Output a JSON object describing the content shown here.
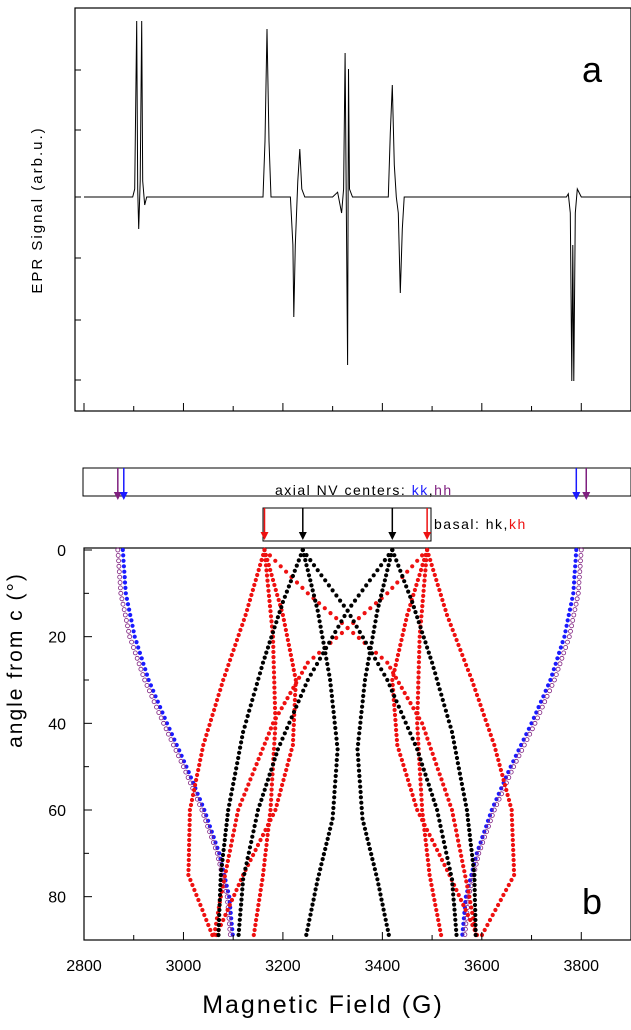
{
  "chart_data": [
    {
      "panel": "a",
      "type": "line",
      "ylabel": "EPR Signal (arb.u.)",
      "panel_label": "a",
      "xlim": [
        2800,
        3900
      ],
      "series": [
        {
          "points": [
            [
              2800,
              0.0
            ],
            [
              2898,
              0.0
            ],
            [
              2902,
              0.05
            ],
            [
              2906,
              1.1
            ],
            [
              2908,
              0.05
            ],
            [
              2910,
              -0.2
            ],
            [
              2913,
              0.1
            ],
            [
              2916,
              1.1
            ],
            [
              2918,
              0.1
            ],
            [
              2922,
              -0.05
            ],
            [
              2926,
              0.0
            ],
            [
              3160,
              0.0
            ],
            [
              3164,
              0.35
            ],
            [
              3168,
              1.05
            ],
            [
              3172,
              0.35
            ],
            [
              3176,
              0.0
            ],
            [
              3215,
              0.0
            ],
            [
              3220,
              -0.3
            ],
            [
              3222,
              -0.75
            ],
            [
              3225,
              -0.3
            ],
            [
              3230,
              0.1
            ],
            [
              3234,
              0.3
            ],
            [
              3238,
              0.05
            ],
            [
              3244,
              0.0
            ],
            [
              3300,
              0.0
            ],
            [
              3310,
              0.03
            ],
            [
              3318,
              -0.1
            ],
            [
              3322,
              0.05
            ],
            [
              3325,
              0.9
            ],
            [
              3327,
              0.1
            ],
            [
              3330,
              -1.05
            ],
            [
              3332,
              0.8
            ],
            [
              3334,
              0.05
            ],
            [
              3340,
              0.0
            ],
            [
              3412,
              0.0
            ],
            [
              3416,
              0.4
            ],
            [
              3420,
              0.7
            ],
            [
              3424,
              0.2
            ],
            [
              3428,
              0.0
            ],
            [
              3432,
              -0.1
            ],
            [
              3436,
              -0.6
            ],
            [
              3440,
              -0.2
            ],
            [
              3444,
              0.0
            ],
            [
              3770,
              0.0
            ],
            [
              3774,
              0.02
            ],
            [
              3778,
              -0.1
            ],
            [
              3781,
              -1.15
            ],
            [
              3783,
              -0.3
            ],
            [
              3785,
              -1.15
            ],
            [
              3788,
              -0.1
            ],
            [
              3792,
              0.05
            ],
            [
              3800,
              0.0
            ],
            [
              3900,
              0.0
            ]
          ]
        }
      ]
    },
    {
      "panel": "b",
      "type": "scatter",
      "xlabel": "Magnetic Field (G)",
      "ylabel": "angle from c (°)",
      "panel_label": "b",
      "xlim": [
        2800,
        3900
      ],
      "ylim": [
        0,
        90
      ],
      "y_inverted": true,
      "xticks": [
        "2800",
        "3000",
        "3200",
        "3400",
        "3600",
        "3800"
      ],
      "yticks": [
        "0",
        "20",
        "40",
        "60",
        "80"
      ],
      "series": [
        {
          "color": "#1a1aff",
          "points": [
            [
              2878,
              0
            ],
            [
              2884,
              10
            ],
            [
              2902,
              20
            ],
            [
              2930,
              30
            ],
            [
              2967,
              40
            ],
            [
              3006,
              50
            ],
            [
              3042,
              60
            ],
            [
              3072,
              70
            ],
            [
              3092,
              80
            ],
            [
              3100,
              90
            ],
            [
              3790,
              0
            ],
            [
              3784,
              10
            ],
            [
              3766,
              20
            ],
            [
              3738,
              30
            ],
            [
              3700,
              40
            ],
            [
              3658,
              50
            ],
            [
              3620,
              60
            ],
            [
              3590,
              70
            ],
            [
              3568,
              80
            ],
            [
              3560,
              90
            ]
          ]
        },
        {
          "color": "#7f1f7f",
          "points": [
            [
              2868,
              0
            ],
            [
              2874,
              10
            ],
            [
              2892,
              20
            ],
            [
              2922,
              30
            ],
            [
              2960,
              40
            ],
            [
              3000,
              50
            ],
            [
              3037,
              60
            ],
            [
              3068,
              70
            ],
            [
              3088,
              80
            ],
            [
              3095,
              90
            ],
            [
              3800,
              0
            ],
            [
              3794,
              10
            ],
            [
              3776,
              20
            ],
            [
              3746,
              30
            ],
            [
              3707,
              40
            ],
            [
              3664,
              50
            ],
            [
              3625,
              60
            ],
            [
              3594,
              70
            ],
            [
              3573,
              80
            ],
            [
              3565,
              90
            ]
          ]
        },
        {
          "color": "#ee1111",
          "points": [
            [
              3163,
              0
            ],
            [
              3125,
              15
            ],
            [
              3080,
              30
            ],
            [
              3040,
              45
            ],
            [
              3013,
              60
            ],
            [
              3010,
              75
            ],
            [
              3062,
              90
            ],
            [
              3163,
              0
            ],
            [
              3200,
              15
            ],
            [
              3226,
              30
            ],
            [
              3220,
              45
            ],
            [
              3185,
              60
            ],
            [
              3120,
              75
            ],
            [
              3062,
              90
            ],
            [
              3163,
              0
            ],
            [
              3180,
              20
            ],
            [
              3185,
              40
            ],
            [
              3175,
              60
            ],
            [
              3160,
              75
            ],
            [
              3140,
              90
            ],
            [
              3490,
              0
            ],
            [
              3530,
              15
            ],
            [
              3580,
              30
            ],
            [
              3625,
              45
            ],
            [
              3660,
              60
            ],
            [
              3665,
              75
            ],
            [
              3595,
              90
            ],
            [
              3490,
              0
            ],
            [
              3450,
              15
            ],
            [
              3420,
              30
            ],
            [
              3430,
              45
            ],
            [
              3470,
              60
            ],
            [
              3535,
              75
            ],
            [
              3595,
              90
            ],
            [
              3490,
              0
            ],
            [
              3475,
              20
            ],
            [
              3470,
              40
            ],
            [
              3480,
              60
            ],
            [
              3495,
              75
            ],
            [
              3520,
              90
            ],
            [
              3163,
              0
            ],
            [
              3250,
              10
            ],
            [
              3330,
              18
            ],
            [
              3410,
              26
            ],
            [
              3480,
              40
            ],
            [
              3540,
              60
            ],
            [
              3575,
              80
            ],
            [
              3590,
              90
            ],
            [
              3490,
              0
            ],
            [
              3410,
              10
            ],
            [
              3330,
              18
            ],
            [
              3250,
              26
            ],
            [
              3180,
              40
            ],
            [
              3110,
              60
            ],
            [
              3075,
              80
            ],
            [
              3060,
              90
            ]
          ]
        },
        {
          "color": "#000000",
          "points": [
            [
              3240,
              0
            ],
            [
              3200,
              12
            ],
            [
              3160,
              26
            ],
            [
              3120,
              42
            ],
            [
              3090,
              60
            ],
            [
              3075,
              75
            ],
            [
              3070,
              90
            ],
            [
              3240,
              0
            ],
            [
              3270,
              14
            ],
            [
              3295,
              30
            ],
            [
              3310,
              46
            ],
            [
              3300,
              62
            ],
            [
              3270,
              76
            ],
            [
              3245,
              90
            ],
            [
              3420,
              0
            ],
            [
              3460,
              12
            ],
            [
              3500,
              26
            ],
            [
              3540,
              42
            ],
            [
              3570,
              60
            ],
            [
              3585,
              75
            ],
            [
              3588,
              90
            ],
            [
              3420,
              0
            ],
            [
              3390,
              14
            ],
            [
              3365,
              30
            ],
            [
              3350,
              46
            ],
            [
              3360,
              62
            ],
            [
              3390,
              76
            ],
            [
              3415,
              90
            ],
            [
              3240,
              0
            ],
            [
              3330,
              14
            ],
            [
              3410,
              30
            ],
            [
              3470,
              46
            ],
            [
              3510,
              60
            ],
            [
              3540,
              76
            ],
            [
              3550,
              90
            ],
            [
              3420,
              0
            ],
            [
              3330,
              14
            ],
            [
              3250,
              30
            ],
            [
              3190,
              46
            ],
            [
              3150,
              60
            ],
            [
              3120,
              76
            ],
            [
              3110,
              90
            ]
          ]
        }
      ]
    }
  ],
  "legend": {
    "axial_text": "axial NV centers: ",
    "axial_kk": "kk",
    "axial_sep": ",",
    "axial_hh": "hh",
    "basal_text": "basal: hk,",
    "basal_kh": "kh",
    "axial_arrows": [
      {
        "field": 2868,
        "color": "#7f1f7f"
      },
      {
        "field": 2880,
        "color": "#1a1aff"
      },
      {
        "field": 3790,
        "color": "#1a1aff"
      },
      {
        "field": 3810,
        "color": "#7f1f7f"
      }
    ],
    "basal_arrows": [
      {
        "field": 3163,
        "color": "#ee1111"
      },
      {
        "field": 3240,
        "color": "#000000"
      },
      {
        "field": 3420,
        "color": "#000000"
      },
      {
        "field": 3490,
        "color": "#ee1111"
      }
    ]
  },
  "colors": {
    "kk": "#1a1aff",
    "hh": "#7f1f7f",
    "kh": "#ee1111",
    "hk": "#000000"
  }
}
